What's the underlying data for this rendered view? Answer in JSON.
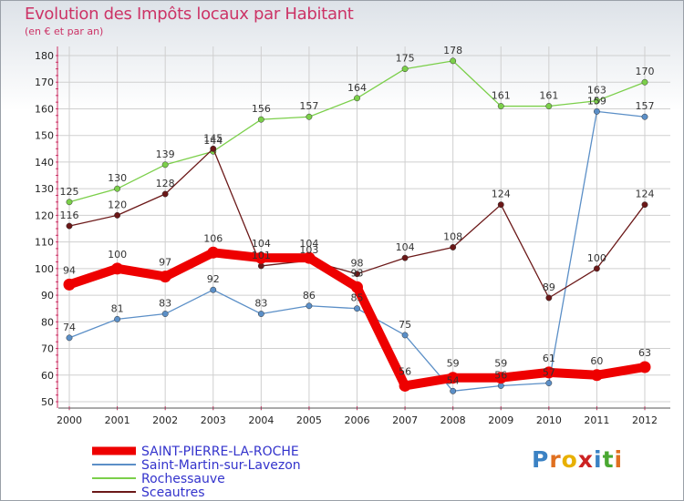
{
  "title": "Evolution des Impôts locaux par Habitant",
  "subtitle": "(en € et par an)",
  "logo": {
    "text": "Proxiti",
    "letters": [
      "P",
      "r",
      "o",
      "x",
      "i",
      "t",
      "i"
    ],
    "colors": [
      "#3b82c4",
      "#e07020",
      "#e8b000",
      "#cc2222",
      "#3b82c4",
      "#4aa832",
      "#e07020"
    ]
  },
  "chart_data": {
    "type": "line",
    "title": "Evolution des Impôts locaux par Habitant",
    "subtitle": "(en € et par an)",
    "xlabel": "",
    "ylabel": "",
    "ylim": [
      50,
      180
    ],
    "yticks": [
      50,
      60,
      70,
      80,
      90,
      100,
      110,
      120,
      130,
      140,
      150,
      160,
      170,
      180
    ],
    "grid": true,
    "categories": [
      "2000",
      "2001",
      "2002",
      "2003",
      "2004",
      "2005",
      "2006",
      "2007",
      "2008",
      "2009",
      "2010",
      "2011",
      "2012"
    ],
    "series": [
      {
        "name": "SAINT-PIERRE-LA-ROCHE",
        "color": "#ee0000",
        "values": [
          94,
          100,
          97,
          106,
          104,
          104,
          93,
          56,
          59,
          59,
          61,
          60,
          63
        ],
        "labels": [
          "94",
          "100",
          "97",
          "106",
          "104",
          "104",
          "93",
          "56",
          "59",
          "59",
          "61",
          "60",
          "63"
        ]
      },
      {
        "name": "Saint-Martin-sur-Lavezon",
        "color": "#5b8fc7",
        "values": [
          74,
          81,
          83,
          92,
          83,
          86,
          85,
          75,
          54,
          56,
          57,
          159,
          157
        ],
        "labels": [
          "74",
          "81",
          "83",
          "92",
          "83",
          "86",
          "85",
          "75",
          "54",
          "56",
          "57",
          "159",
          "157"
        ]
      },
      {
        "name": "Rochessauve",
        "color": "#7bcf4a",
        "values": [
          125,
          130,
          139,
          144,
          156,
          157,
          164,
          175,
          178,
          161,
          161,
          163,
          170
        ],
        "labels": [
          "125",
          "130",
          "139",
          "144",
          "156",
          "157",
          "164",
          "175",
          "178",
          "161",
          "161",
          "163",
          "170"
        ]
      },
      {
        "name": "Sceautres",
        "color": "#6b1818",
        "values": [
          116,
          120,
          128,
          145,
          101,
          103,
          98,
          104,
          108,
          124,
          89,
          100,
          124
        ],
        "labels": [
          "116",
          "120",
          "128",
          "145",
          "101",
          "103",
          "98",
          "104",
          "108",
          "124",
          "89",
          "100",
          "124"
        ]
      }
    ]
  }
}
